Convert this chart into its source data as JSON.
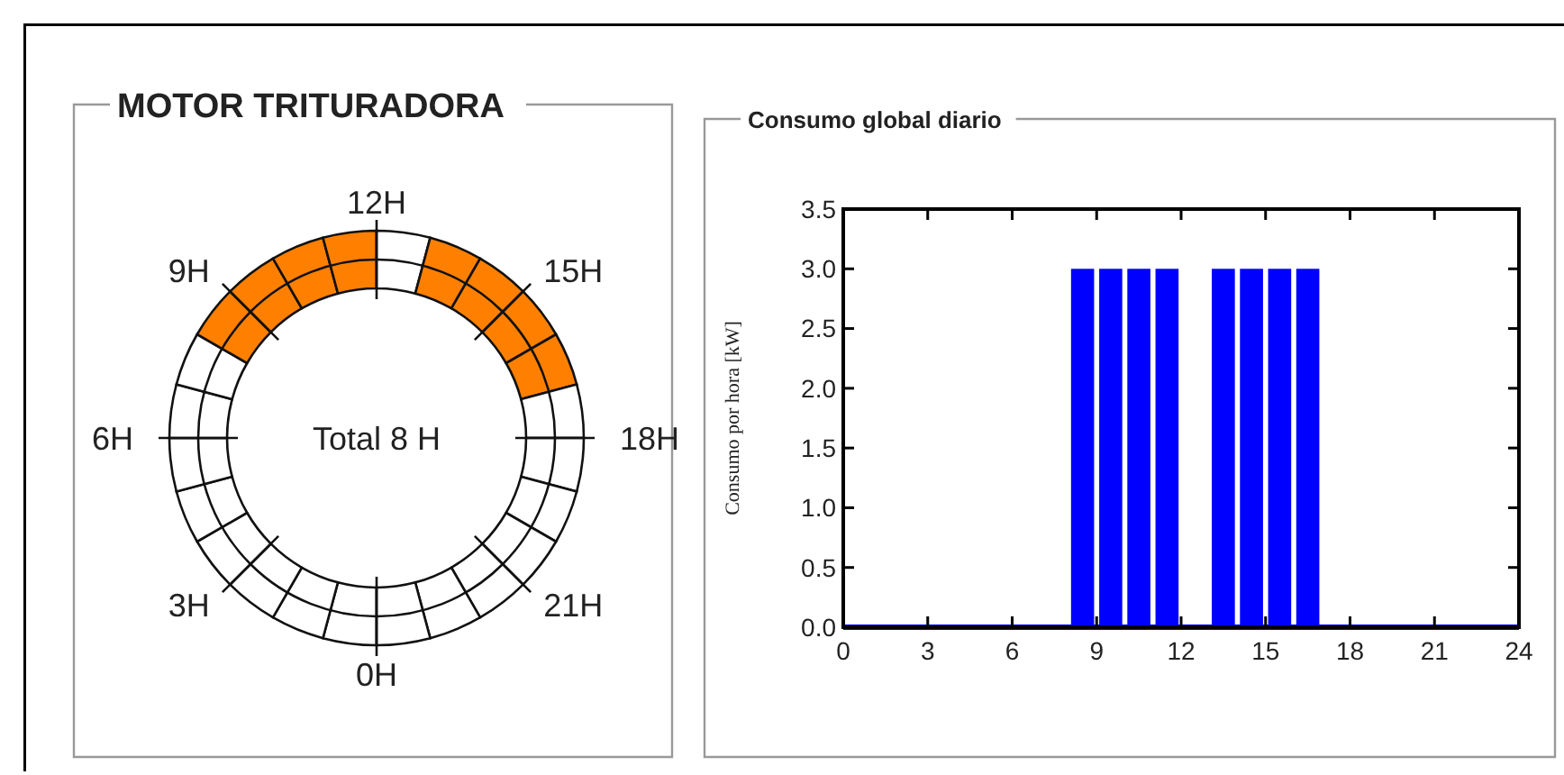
{
  "chart_data": [
    {
      "type": "donut",
      "title": "MOTOR TRITURADORA",
      "categories": [
        null,
        null,
        null,
        null,
        null,
        null,
        null,
        null,
        null,
        null,
        null,
        null,
        null,
        null,
        null,
        null,
        null,
        null,
        null,
        null,
        null,
        null,
        null,
        null
      ],
      "values": [
        4.1667,
        4.1667,
        4.1667,
        4.1667,
        4.1667,
        4.1667,
        4.1667,
        4.1667,
        4.1667,
        4.1667,
        4.1667,
        4.1667,
        4.1667,
        4.1667,
        4.1667,
        4.1667,
        4.1667,
        4.1667,
        4.1667,
        4.1667,
        4.1667,
        4.1667,
        4.1667,
        4.1667
      ],
      "colors": [
        "#ffffff",
        "#ffffff",
        "#ffffff",
        "#ffffff",
        "#ffffff",
        "#ffffff",
        "#ffffff",
        "#ffffff",
        "#ff8000",
        "#ff8000",
        "#ff8000",
        "#ff8000",
        "#ffffff",
        "#ff8000",
        "#ff8000",
        "#ff8000",
        "#ff8000",
        "#ffffff",
        "#ffffff",
        "#ffffff",
        "#ffffff",
        "#ffffff",
        "#ffffff",
        "#ffffff"
      ],
      "annotations": [
        "0H",
        "3H",
        "6H",
        "9H",
        "12H",
        "15H",
        "18H",
        "21H",
        "Total 8 H"
      ]
    },
    {
      "type": "bar",
      "title": "Consumo global diario",
      "ylabel": "Consumo por hora [kW]",
      "x": [
        0.5,
        1.5,
        2.5,
        3.5,
        4.5,
        5.5,
        6.5,
        7.5,
        8.5,
        9.5,
        10.5,
        11.5,
        12.5,
        13.5,
        14.5,
        15.5,
        16.5,
        17.5,
        18.5,
        19.5,
        20.5,
        21.5,
        22.5,
        23.5
      ],
      "values": [
        0,
        0,
        0,
        0,
        0,
        0,
        0,
        0,
        3,
        3,
        3,
        3,
        0,
        3,
        3,
        3,
        3,
        0,
        0,
        0,
        0,
        0,
        0,
        0
      ],
      "color": "#0000ff",
      "xlim": [
        0,
        24
      ],
      "xticks": [
        0,
        3,
        6,
        9,
        12,
        15,
        18,
        21,
        24
      ],
      "ylim": [
        0,
        3.5
      ],
      "yticks": [
        {
          "value": 0,
          "label": "0.0"
        },
        {
          "value": 0.5,
          "label": "0.5"
        },
        {
          "value": 1,
          "label": "1.0"
        },
        {
          "value": 1.5,
          "label": "1.5"
        },
        {
          "value": 2,
          "label": "2.0"
        },
        {
          "value": 2.5,
          "label": "2.5"
        },
        {
          "value": 3,
          "label": "3.0"
        },
        {
          "value": 3.5,
          "label": "3.5"
        }
      ],
      "grid": false
    }
  ]
}
